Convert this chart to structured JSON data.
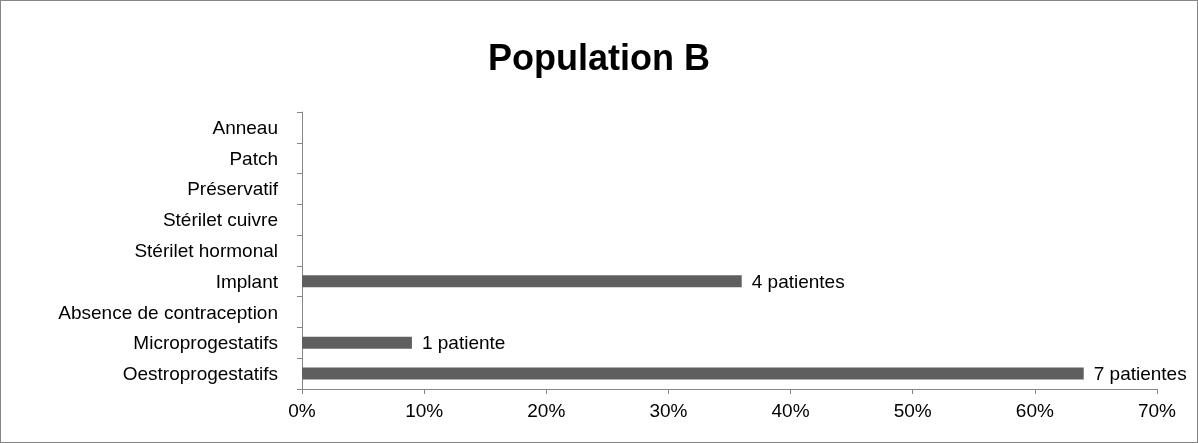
{
  "chart_data": {
    "type": "bar",
    "orientation": "horizontal",
    "title": "Population B",
    "categories": [
      "Anneau",
      "Patch",
      "Préservatif",
      "Stérilet cuivre",
      "Stérilet hormonal",
      "Implant",
      "Absence de contraception",
      "Microprogestatifs",
      "Oestroprogestatifs"
    ],
    "series": [
      {
        "color": "#5f5f5f",
        "values": [
          0,
          0,
          0,
          0,
          0,
          36,
          0,
          9,
          64
        ]
      }
    ],
    "annotations": [
      {
        "text": "4 patientes",
        "x": 36,
        "y": "Implant"
      },
      {
        "text": "1 patiente",
        "x": 9,
        "y": "Microprogestatifs"
      },
      {
        "text": "7 patientes",
        "x": 64,
        "y": "Oestroprogestatifs"
      }
    ],
    "xlim": [
      0,
      70
    ],
    "xticks": [
      {
        "value": 0,
        "label": "0%"
      },
      {
        "value": 10,
        "label": "10%"
      },
      {
        "value": 20,
        "label": "20%"
      },
      {
        "value": 30,
        "label": "30%"
      },
      {
        "value": 40,
        "label": "40%"
      },
      {
        "value": 50,
        "label": "50%"
      },
      {
        "value": 60,
        "label": "60%"
      },
      {
        "value": 70,
        "label": "70%"
      }
    ],
    "grid": false
  }
}
